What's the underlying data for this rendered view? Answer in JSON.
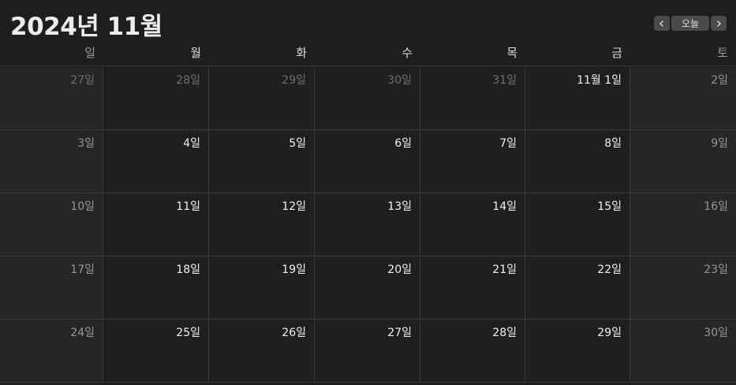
{
  "header": {
    "title": "2024년 11월",
    "today_label": "오늘"
  },
  "weekdays": [
    "일",
    "월",
    "화",
    "수",
    "목",
    "금",
    "토"
  ],
  "weeks": [
    [
      {
        "label": "27일",
        "other": true
      },
      {
        "label": "28일",
        "other": true
      },
      {
        "label": "29일",
        "other": true
      },
      {
        "label": "30일",
        "other": true
      },
      {
        "label": "31일",
        "other": true
      },
      {
        "label": "11월 1일",
        "other": false
      },
      {
        "label": "2일",
        "other": false
      }
    ],
    [
      {
        "label": "3일",
        "other": false
      },
      {
        "label": "4일",
        "other": false
      },
      {
        "label": "5일",
        "other": false
      },
      {
        "label": "6일",
        "other": false
      },
      {
        "label": "7일",
        "other": false
      },
      {
        "label": "8일",
        "other": false
      },
      {
        "label": "9일",
        "other": false
      }
    ],
    [
      {
        "label": "10일",
        "other": false
      },
      {
        "label": "11일",
        "other": false
      },
      {
        "label": "12일",
        "other": false
      },
      {
        "label": "13일",
        "other": false
      },
      {
        "label": "14일",
        "other": false
      },
      {
        "label": "15일",
        "other": false
      },
      {
        "label": "16일",
        "other": false
      }
    ],
    [
      {
        "label": "17일",
        "other": false
      },
      {
        "label": "18일",
        "other": false
      },
      {
        "label": "19일",
        "other": false
      },
      {
        "label": "20일",
        "other": false
      },
      {
        "label": "21일",
        "other": false
      },
      {
        "label": "22일",
        "other": false
      },
      {
        "label": "23일",
        "other": false
      }
    ],
    [
      {
        "label": "24일",
        "other": false
      },
      {
        "label": "25일",
        "other": false
      },
      {
        "label": "26일",
        "other": false
      },
      {
        "label": "27일",
        "other": false
      },
      {
        "label": "28일",
        "other": false
      },
      {
        "label": "29일",
        "other": false
      },
      {
        "label": "30일",
        "other": false
      }
    ]
  ],
  "icons": {
    "prev": "chevron-left-icon",
    "next": "chevron-right-icon"
  }
}
